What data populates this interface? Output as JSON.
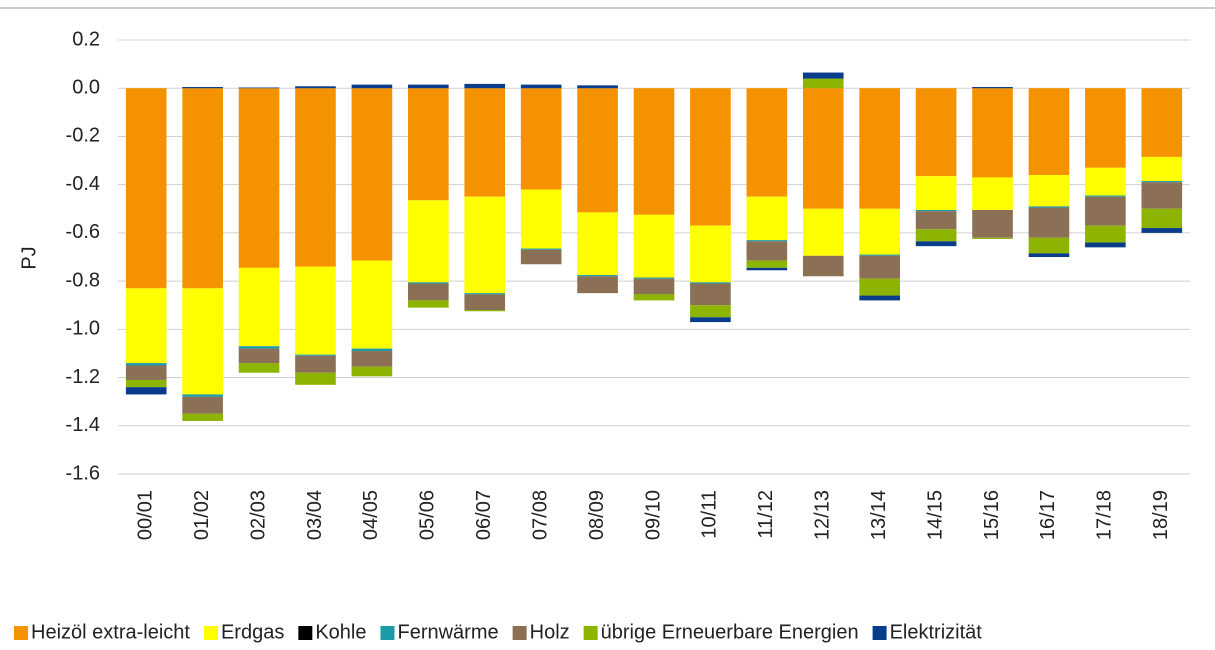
{
  "chart_data": {
    "type": "stacked_bar",
    "y_label": "PJ",
    "categories": [
      "00/01",
      "01/02",
      "02/03",
      "03/04",
      "04/05",
      "05/06",
      "06/07",
      "07/08",
      "08/09",
      "09/10",
      "10/11",
      "11/12",
      "12/13",
      "13/14",
      "14/15",
      "15/16",
      "16/17",
      "17/18",
      "18/19"
    ],
    "series": [
      {
        "name": "Heizöl extra-leicht",
        "color": "#f59200",
        "values": [
          -0.83,
          -0.83,
          -0.745,
          -0.74,
          -0.715,
          -0.465,
          -0.45,
          -0.42,
          -0.515,
          -0.525,
          -0.57,
          -0.45,
          -0.5,
          -0.5,
          -0.365,
          -0.37,
          -0.36,
          -0.33,
          -0.285
        ]
      },
      {
        "name": "Erdgas",
        "color": "#ffff00",
        "values": [
          -0.31,
          -0.44,
          -0.325,
          -0.365,
          -0.365,
          -0.34,
          -0.4,
          -0.245,
          -0.26,
          -0.26,
          -0.235,
          -0.18,
          -0.195,
          -0.19,
          -0.14,
          -0.135,
          -0.13,
          -0.115,
          -0.1
        ]
      },
      {
        "name": "Kohle",
        "color": "#000000",
        "values": [
          0,
          0,
          0,
          0,
          0,
          0,
          0,
          0,
          0,
          0,
          0,
          0,
          0,
          0,
          0,
          0,
          0,
          0,
          0
        ]
      },
      {
        "name": "Fernwärme",
        "color": "#1a9ba8",
        "values": [
          -0.01,
          -0.01,
          -0.01,
          -0.005,
          -0.01,
          -0.005,
          -0.005,
          -0.005,
          -0.005,
          -0.005,
          -0.005,
          -0.005,
          0,
          -0.005,
          -0.005,
          0,
          -0.005,
          -0.005,
          -0.005
        ]
      },
      {
        "name": "Holz",
        "color": "#8c7055",
        "values": [
          -0.06,
          -0.07,
          -0.06,
          -0.07,
          -0.065,
          -0.07,
          -0.065,
          -0.06,
          -0.07,
          -0.065,
          -0.09,
          -0.08,
          -0.085,
          -0.095,
          -0.075,
          -0.115,
          -0.125,
          -0.12,
          -0.11
        ]
      },
      {
        "name": "übrige Erneuerbare Energien",
        "color": "#8cb400",
        "values": [
          -0.03,
          -0.03,
          -0.04,
          -0.05,
          -0.04,
          -0.03,
          -0.005,
          0,
          0,
          -0.025,
          -0.05,
          -0.03,
          0.04,
          -0.07,
          -0.05,
          -0.005,
          -0.065,
          -0.07,
          -0.08
        ]
      },
      {
        "name": "Elektrizität",
        "color": "#0a3c8c",
        "values": [
          -0.03,
          0.005,
          0.003,
          0.008,
          0.015,
          0.015,
          0.018,
          0.015,
          0.012,
          0,
          -0.02,
          -0.01,
          0.025,
          -0.02,
          -0.02,
          0.005,
          -0.015,
          -0.02,
          -0.02
        ]
      }
    ],
    "ylim": [
      -1.6,
      0.2
    ],
    "yticks": [
      {
        "value": 0.2,
        "label": "0.2"
      },
      {
        "value": 0,
        "label": "0.0"
      },
      {
        "value": -0.2,
        "label": "-0.2"
      },
      {
        "value": -0.4,
        "label": "-0.4"
      },
      {
        "value": -0.6,
        "label": "-0.6"
      },
      {
        "value": -0.8,
        "label": "-0.8"
      },
      {
        "value": -1,
        "label": "-1.0"
      },
      {
        "value": -1.2,
        "label": "-1.2"
      },
      {
        "value": -1.4,
        "label": "-1.4"
      },
      {
        "value": -1.6,
        "label": "-1.6"
      }
    ],
    "grid": true,
    "legend": "bottom"
  }
}
